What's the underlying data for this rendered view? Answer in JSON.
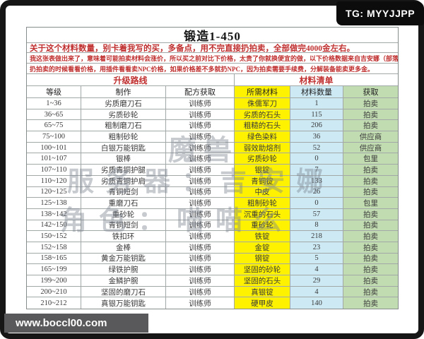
{
  "badges": {
    "tg": "TG: MYYJJPP",
    "site": "www.boccl00.com"
  },
  "title": "锻造1-450",
  "notes": [
    "关于这个材料数量，别卡着我写的买，多备点，用不完直接扔拍卖，全部做完4000金左右。",
    "我这张表做出来了，意味着可能拍卖材料会涨价，所以买之前对比下价格，太贵了你就换便宜的做，以下价格数据来自吉安娜（部落）",
    "扔拍卖的时候看看价格，用插件看看卖NPC价格，如果价格差不多就扔NPC，因为拍卖需要手续费，分解装备能卖更多金。"
  ],
  "table": {
    "group_headers": [
      "升级路线",
      "材料清单"
    ],
    "columns": [
      "等级",
      "制作",
      "配方获取",
      "所需材料",
      "材料数量",
      "获取"
    ],
    "rows": [
      [
        "1~36",
        "劣质磨刀石",
        "训练师",
        "侏儒军刀",
        "1",
        "拍卖"
      ],
      [
        "36~65",
        "劣质砂轮",
        "训练师",
        "劣质的石头",
        "115",
        "拍卖"
      ],
      [
        "65~75",
        "粗制磨刀石",
        "训练师",
        "粗糙的石头",
        "206",
        "拍卖"
      ],
      [
        "75~100",
        "粗制砂轮",
        "训练师",
        "绿色染料",
        "36",
        "供应商"
      ],
      [
        "100~101",
        "白银万能钥匙",
        "训练师",
        "弱效助熔剂",
        "52",
        "供应商"
      ],
      [
        "101~107",
        "银棒",
        "训练师",
        "劣质砂轮",
        "0",
        "包里"
      ],
      [
        "107~110",
        "劣质青铜护腿",
        "训练师",
        "银锭",
        "7",
        "拍卖"
      ],
      [
        "110~120",
        "劣质青铜护肩",
        "训练师",
        "青铜锭",
        "133",
        "拍卖"
      ],
      [
        "120~125",
        "青铜短剑",
        "训练师",
        "中皮",
        "26",
        "拍卖"
      ],
      [
        "125~138",
        "重磨刀石",
        "训练师",
        "粗制砂轮",
        "0",
        "包里"
      ],
      [
        "138~142",
        "重砂轮",
        "训练师",
        "沉重的石头",
        "57",
        "拍卖"
      ],
      [
        "142~150",
        "青铜短剑",
        "训练师",
        "重砂轮",
        "8",
        "拍卖"
      ],
      [
        "150~152",
        "铁扣环",
        "训练师",
        "铁锭",
        "218",
        "拍卖"
      ],
      [
        "152~158",
        "金棒",
        "训练师",
        "金锭",
        "23",
        "拍卖"
      ],
      [
        "158~165",
        "黄金万能钥匙",
        "训练师",
        "钢锭",
        "5",
        "拍卖"
      ],
      [
        "165~199",
        "绿铁护腕",
        "训练师",
        "坚固的砂轮",
        "4",
        "拍卖"
      ],
      [
        "199~200",
        "金鳞护腕",
        "训练师",
        "坚固的石头",
        "29",
        "拍卖"
      ],
      [
        "200~210",
        "坚固的磨刀石",
        "训练师",
        "真银锭",
        "4",
        "拍卖"
      ],
      [
        "210~212",
        "真银万能钥匙",
        "训练师",
        "硬甲皮",
        "140",
        "拍卖"
      ]
    ]
  },
  "watermark": {
    "lines": [
      "魔兽",
      "服务器：吉安娜",
      "角色：喵喵么"
    ]
  },
  "colors": {
    "material_column": "#fef200",
    "quantity_column": "#cde9f4",
    "obtain_column": "#c2dcb2",
    "note_red": "#c03030",
    "frame_black": "#161616",
    "site_badge_gray": "#59595b"
  }
}
